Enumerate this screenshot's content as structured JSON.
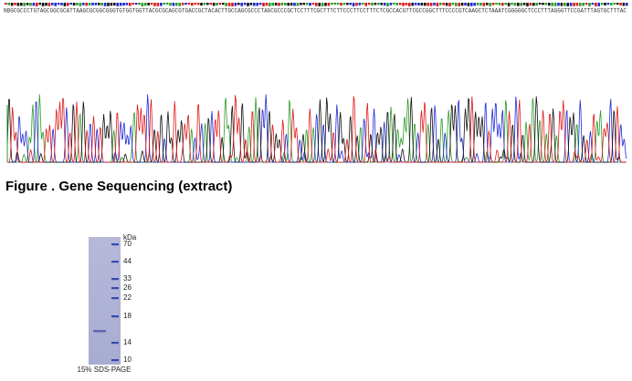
{
  "sequence": {
    "bases": "NBGCGCCCTGTAGCGGCGCATTAAGCGCGGCGGGTGTGGTGGTTACGCGCAGCGTGACCGCTACACTTGCCAGCGCCCTAGCGCCCGCTCCTTTCGCTTTCTTCCCTTCCTTTCTCGCCACGTTCGCCGGCTTTCCCCGTCAAGCTCTAAATCGGGGGCTCCCTTTAGGGTTCCGATTTAGTGCTTTAC"
  },
  "figure": {
    "caption": "Figure . Gene Sequencing (extract)"
  },
  "gel": {
    "unit": "kDa",
    "markers": [
      "70",
      "44",
      "33",
      "26",
      "22",
      "18",
      "14",
      "10"
    ],
    "caption": "15% SDS-PAGE"
  }
}
